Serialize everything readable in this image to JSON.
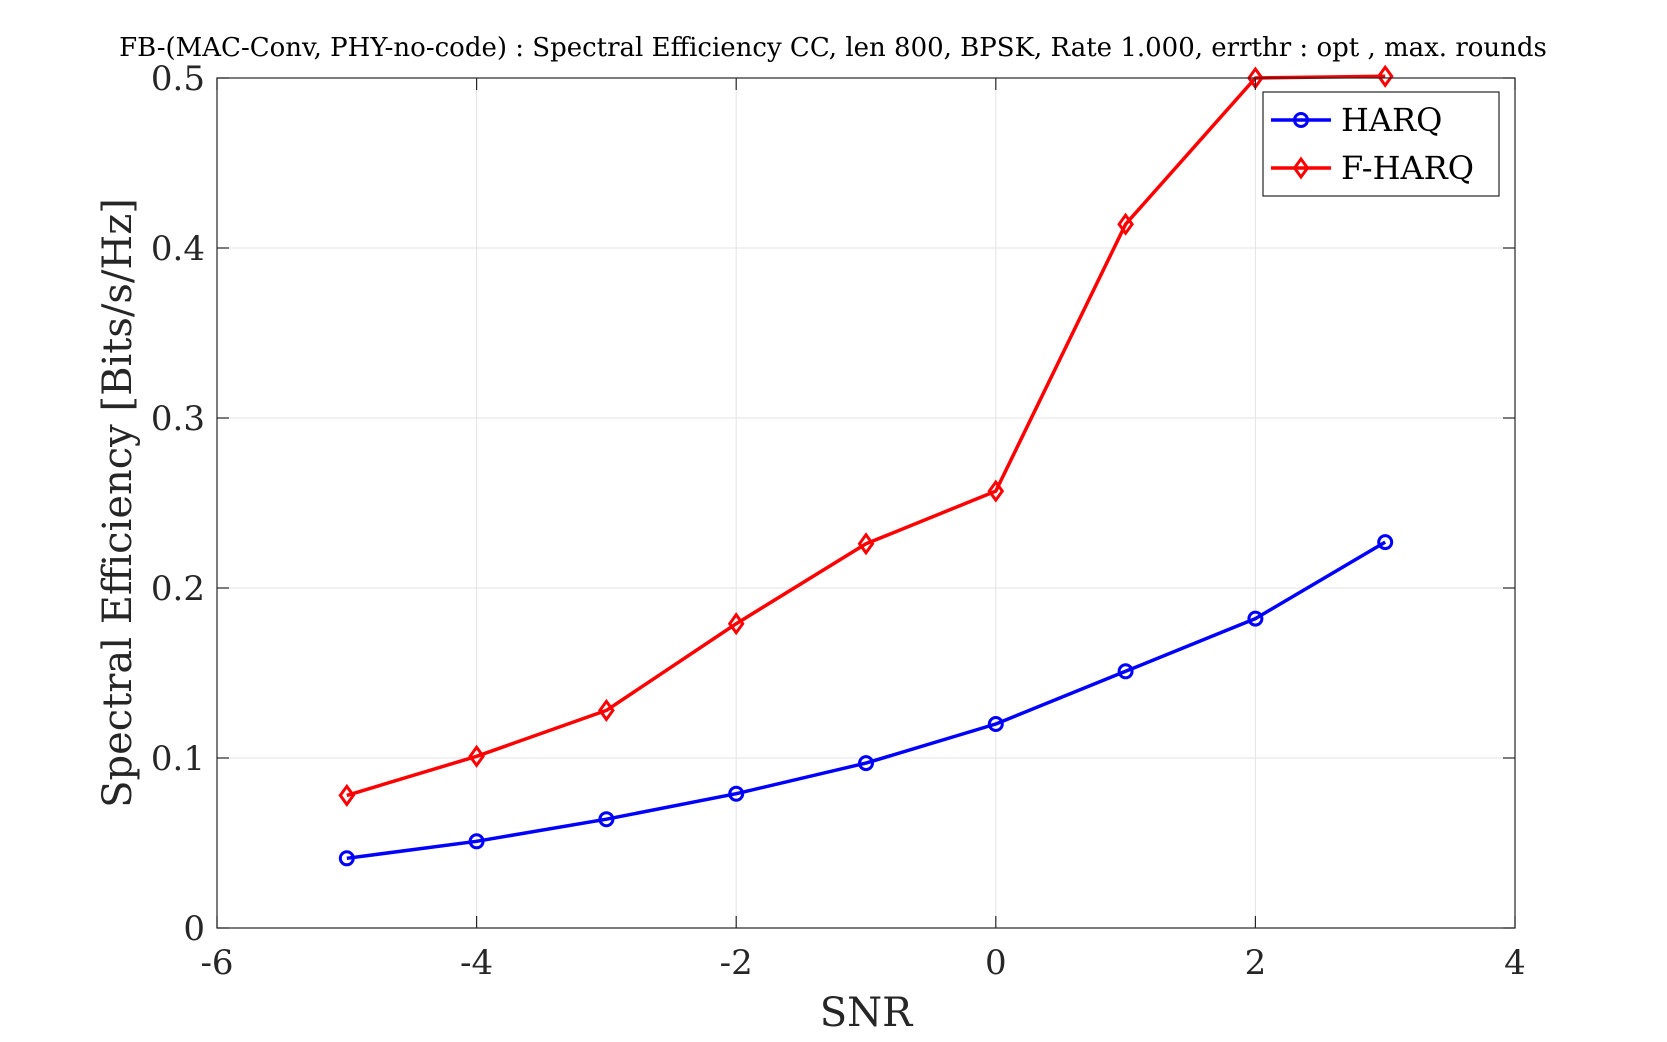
{
  "chart_data": {
    "type": "line",
    "title": "FB-(MAC-Conv, PHY-no-code) : Spectral Efficiency CC, len 800, BPSK, Rate 1.000, errthr : opt , max. rounds",
    "xlabel": "SNR",
    "ylabel": "Spectral Efficiency [Bits/s/Hz]",
    "xlim": [
      -6,
      4
    ],
    "ylim": [
      0,
      0.5
    ],
    "xticks": [
      -6,
      -4,
      -2,
      0,
      2,
      4
    ],
    "yticks": [
      0,
      0.1,
      0.2,
      0.3,
      0.4,
      0.5
    ],
    "xtick_labels": [
      "-6",
      "-4",
      "-2",
      "0",
      "2",
      "4"
    ],
    "ytick_labels": [
      "0",
      "0.1",
      "0.2",
      "0.3",
      "0.4",
      "0.5"
    ],
    "grid": true,
    "legend_position": "top-right",
    "x": [
      -5,
      -4,
      -3,
      -2,
      -1,
      0,
      1,
      2,
      3
    ],
    "series": [
      {
        "name": "HARQ",
        "color": "#0000ff",
        "marker": "circle",
        "values": [
          0.041,
          0.051,
          0.064,
          0.079,
          0.097,
          0.12,
          0.151,
          0.182,
          0.227
        ]
      },
      {
        "name": "F-HARQ",
        "color": "#ff0000",
        "marker": "diamond",
        "values": [
          0.078,
          0.101,
          0.128,
          0.179,
          0.226,
          0.257,
          0.414,
          0.5,
          0.501
        ]
      }
    ]
  }
}
